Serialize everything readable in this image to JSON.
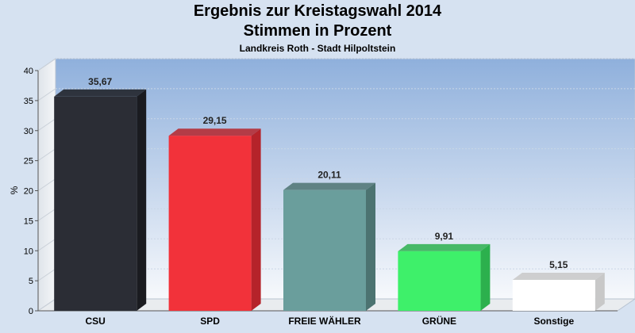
{
  "chart_data": {
    "type": "bar",
    "title": "Ergebnis zur Kreistagswahl 2014",
    "subtitle": "Stimmen in Prozent",
    "caption": "Landkreis Roth - Stadt Hilpoltstein",
    "ylabel": "%",
    "ylim": [
      0,
      40
    ],
    "yticks": [
      0,
      5,
      10,
      15,
      20,
      25,
      30,
      35,
      40
    ],
    "grid": true,
    "categories": [
      "CSU",
      "SPD",
      "FREIE WÄHLER",
      "GRÜNE",
      "Sonstige"
    ],
    "values": [
      35.67,
      29.15,
      20.11,
      9.91,
      5.15
    ],
    "value_labels": [
      "35,67",
      "29,15",
      "20,11",
      "9,91",
      "5,15"
    ],
    "colors": [
      "#2b2d35",
      "#f2323a",
      "#6a9e9c",
      "#3ef06a",
      "#ffffff"
    ],
    "side_colors": [
      "#1a1b20",
      "#b5232a",
      "#4c7371",
      "#2cb04d",
      "#c8c8c8"
    ]
  }
}
